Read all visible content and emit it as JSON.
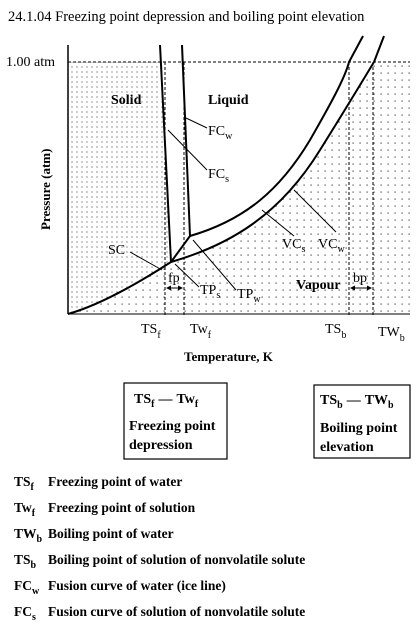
{
  "title": "24.1.04 Freezing point depression and boiling point elevation",
  "pressure_label": "1.00 atm",
  "y_axis_label": "Pressure (atm)",
  "x_axis_label": "Temperature, K",
  "regions": {
    "solid": "Solid",
    "liquid": "Liquid",
    "vapour": "Vapour"
  },
  "curves": {
    "fc_w": {
      "main": "FC",
      "sub": "w"
    },
    "fc_s": {
      "main": "FC",
      "sub": "s"
    },
    "sc": "SC",
    "vc_s": {
      "main": "VC",
      "sub": "s"
    },
    "vc_w": {
      "main": "VC",
      "sub": "w"
    },
    "tp_s": {
      "main": "TP",
      "sub": "s"
    },
    "tp_w": {
      "main": "TP",
      "sub": "w"
    }
  },
  "intervals": {
    "fp": "fp",
    "bp": "bp"
  },
  "ticks": {
    "ts_f": {
      "main": "TS",
      "sub": "f"
    },
    "tw_f": {
      "main": "Tw",
      "sub": "f"
    },
    "ts_b": {
      "main": "TS",
      "sub": "b"
    },
    "tw_b": {
      "main": "TW",
      "sub": "b"
    }
  },
  "boxes": {
    "freezing": {
      "a": "TS",
      "a_sub": "f",
      "dash": "—",
      "b": "Tw",
      "b_sub": "f",
      "line1": "Freezing point",
      "line2": "depression"
    },
    "boiling": {
      "a": "TS",
      "a_sub": "b",
      "dash": "—",
      "b": "TW",
      "b_sub": "b",
      "line1": "Boiling point",
      "line2": "elevation"
    }
  },
  "legend": [
    {
      "sym": "TS",
      "sub": "f",
      "text": "Freezing point of water"
    },
    {
      "sym": "Tw",
      "sub": "f",
      "text": "Freezing point of solution"
    },
    {
      "sym": "TW",
      "sub": "b",
      "text": "Boiling point of water"
    },
    {
      "sym": "TS",
      "sub": "b",
      "text": "Boiling point of solution of nonvolatile solute"
    },
    {
      "sym": "FC",
      "sub": "w",
      "text": "Fusion curve of water (ice line)"
    },
    {
      "sym": "FC",
      "sub": "s",
      "text": "Fusion curve of solution of nonvolatile solute"
    }
  ]
}
